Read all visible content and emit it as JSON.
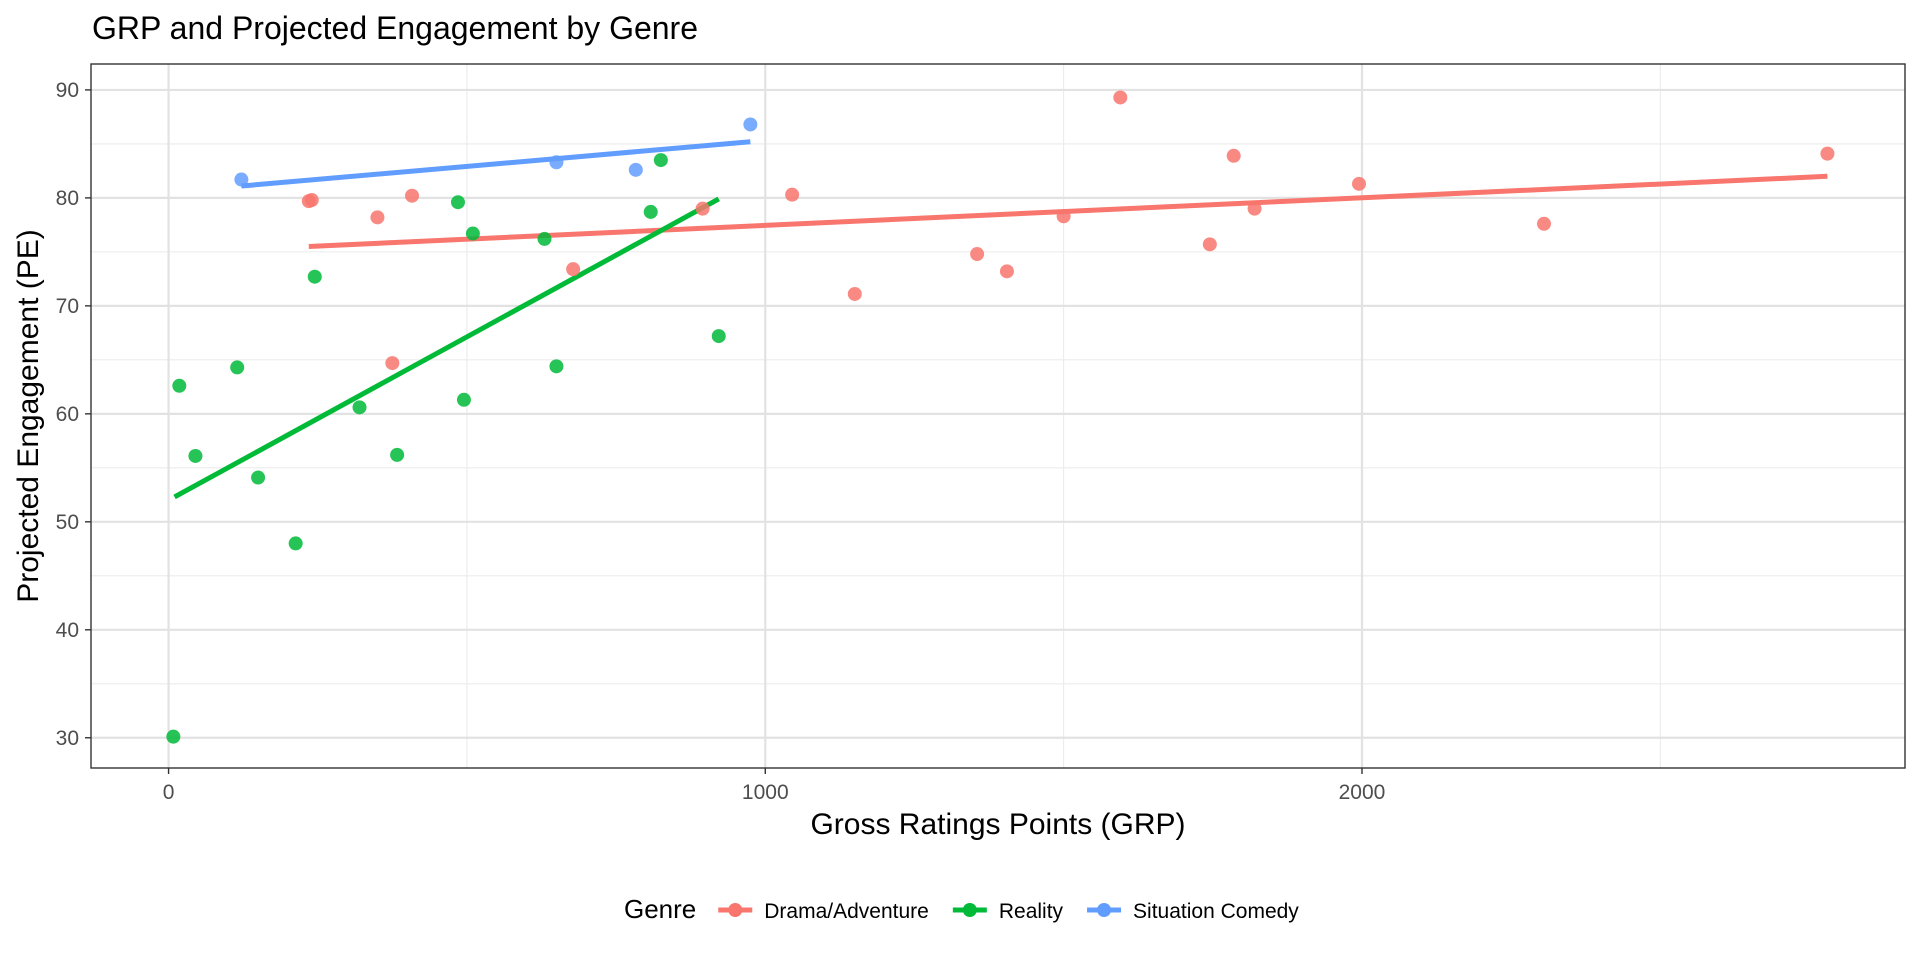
{
  "chart_data": {
    "type": "scatter",
    "title": "GRP and Projected Engagement by Genre",
    "xlabel": "Gross Ratings Points (GRP)",
    "ylabel": "Projected Engagement (PE)",
    "xlim": [
      -130,
      2910
    ],
    "ylim": [
      27.2,
      92.4
    ],
    "x_ticks": [
      0,
      1000,
      2000
    ],
    "y_ticks": [
      30,
      40,
      50,
      60,
      70,
      80,
      90
    ],
    "grid": true,
    "legend_title": "Genre",
    "legend_position": "bottom",
    "series": [
      {
        "name": "Drama/Adventure",
        "color": "#F8766D",
        "points": [
          [
            235,
            79.7
          ],
          [
            240,
            79.8
          ],
          [
            350,
            78.2
          ],
          [
            408,
            80.2
          ],
          [
            375,
            64.7
          ],
          [
            678,
            73.4
          ],
          [
            895,
            79.0
          ],
          [
            1045,
            80.3
          ],
          [
            1150,
            71.1
          ],
          [
            1355,
            74.8
          ],
          [
            1405,
            73.2
          ],
          [
            1500,
            78.3
          ],
          [
            1595,
            89.3
          ],
          [
            1745,
            75.7
          ],
          [
            1785,
            83.9
          ],
          [
            1820,
            79.0
          ],
          [
            1995,
            81.3
          ],
          [
            2305,
            77.6
          ],
          [
            2780,
            84.1
          ]
        ],
        "trend": [
          [
            235,
            75.5
          ],
          [
            2780,
            82.0
          ]
        ]
      },
      {
        "name": "Reality",
        "color": "#00BA38",
        "points": [
          [
            8,
            30.1
          ],
          [
            18,
            62.6
          ],
          [
            45,
            56.1
          ],
          [
            115,
            64.3
          ],
          [
            150,
            54.1
          ],
          [
            213,
            48.0
          ],
          [
            245,
            72.7
          ],
          [
            320,
            60.6
          ],
          [
            383,
            56.2
          ],
          [
            485,
            79.6
          ],
          [
            495,
            61.3
          ],
          [
            510,
            76.7
          ],
          [
            630,
            76.2
          ],
          [
            650,
            64.4
          ],
          [
            808,
            78.7
          ],
          [
            825,
            83.5
          ],
          [
            922,
            67.2
          ]
        ],
        "trend": [
          [
            10,
            52.3
          ],
          [
            922,
            79.9
          ]
        ]
      },
      {
        "name": "Situation Comedy",
        "color": "#619CFF",
        "points": [
          [
            122,
            81.7
          ],
          [
            650,
            83.3
          ],
          [
            783,
            82.6
          ],
          [
            975,
            86.8
          ]
        ],
        "trend": [
          [
            122,
            81.1
          ],
          [
            975,
            85.2
          ]
        ]
      }
    ]
  }
}
